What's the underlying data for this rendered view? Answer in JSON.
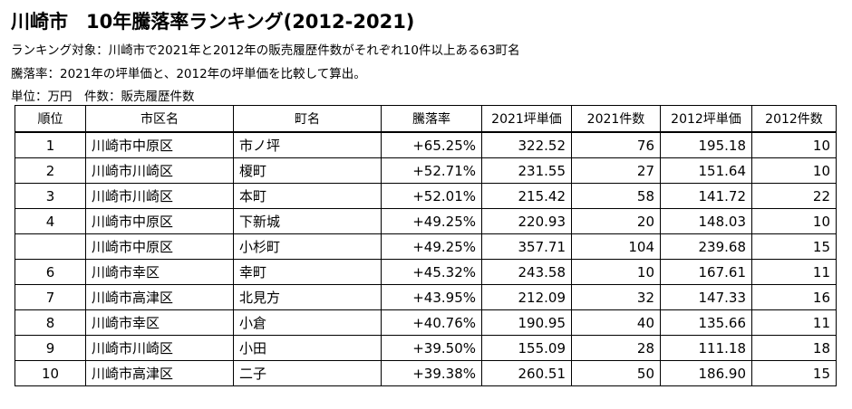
{
  "title": {
    "city": "川崎市",
    "main": "10年騰落率ランキング(2012-2021)"
  },
  "notes": [
    "ランキング対象：川崎市で2021年と2012年の販売履歴件数がそれぞれ10件以上ある63町名",
    "騰落率：2021年の坪単価と、2012年の坪単価を比較して算出。",
    "単位：万円　件数：販売履歴件数"
  ],
  "table": {
    "headers": [
      "順位",
      "市区名",
      "町名",
      "騰落率",
      "2021坪単価",
      "2021件数",
      "2012坪単価",
      "2012件数"
    ],
    "rows": [
      [
        "1",
        "川崎市中原区",
        "市ノ坪",
        "+65.25%",
        "322.52",
        "76",
        "195.18",
        "10"
      ],
      [
        "2",
        "川崎市川崎区",
        "榎町",
        "+52.71%",
        "231.55",
        "27",
        "151.64",
        "10"
      ],
      [
        "3",
        "川崎市川崎区",
        "本町",
        "+52.01%",
        "215.42",
        "58",
        "141.72",
        "22"
      ],
      [
        "4",
        "川崎市中原区",
        "下新城",
        "+49.25%",
        "220.93",
        "20",
        "148.03",
        "10"
      ],
      [
        "",
        "川崎市中原区",
        "小杉町",
        "+49.25%",
        "357.71",
        "104",
        "239.68",
        "15"
      ],
      [
        "6",
        "川崎市幸区",
        "幸町",
        "+45.32%",
        "243.58",
        "10",
        "167.61",
        "11"
      ],
      [
        "7",
        "川崎市高津区",
        "北見方",
        "+43.95%",
        "212.09",
        "32",
        "147.33",
        "16"
      ],
      [
        "8",
        "川崎市幸区",
        "小倉",
        "+40.76%",
        "190.95",
        "40",
        "135.66",
        "11"
      ],
      [
        "9",
        "川崎市川崎区",
        "小田",
        "+39.50%",
        "155.09",
        "28",
        "111.18",
        "18"
      ],
      [
        "10",
        "川崎市高津区",
        "二子",
        "+39.38%",
        "260.51",
        "50",
        "186.90",
        "15"
      ]
    ]
  }
}
